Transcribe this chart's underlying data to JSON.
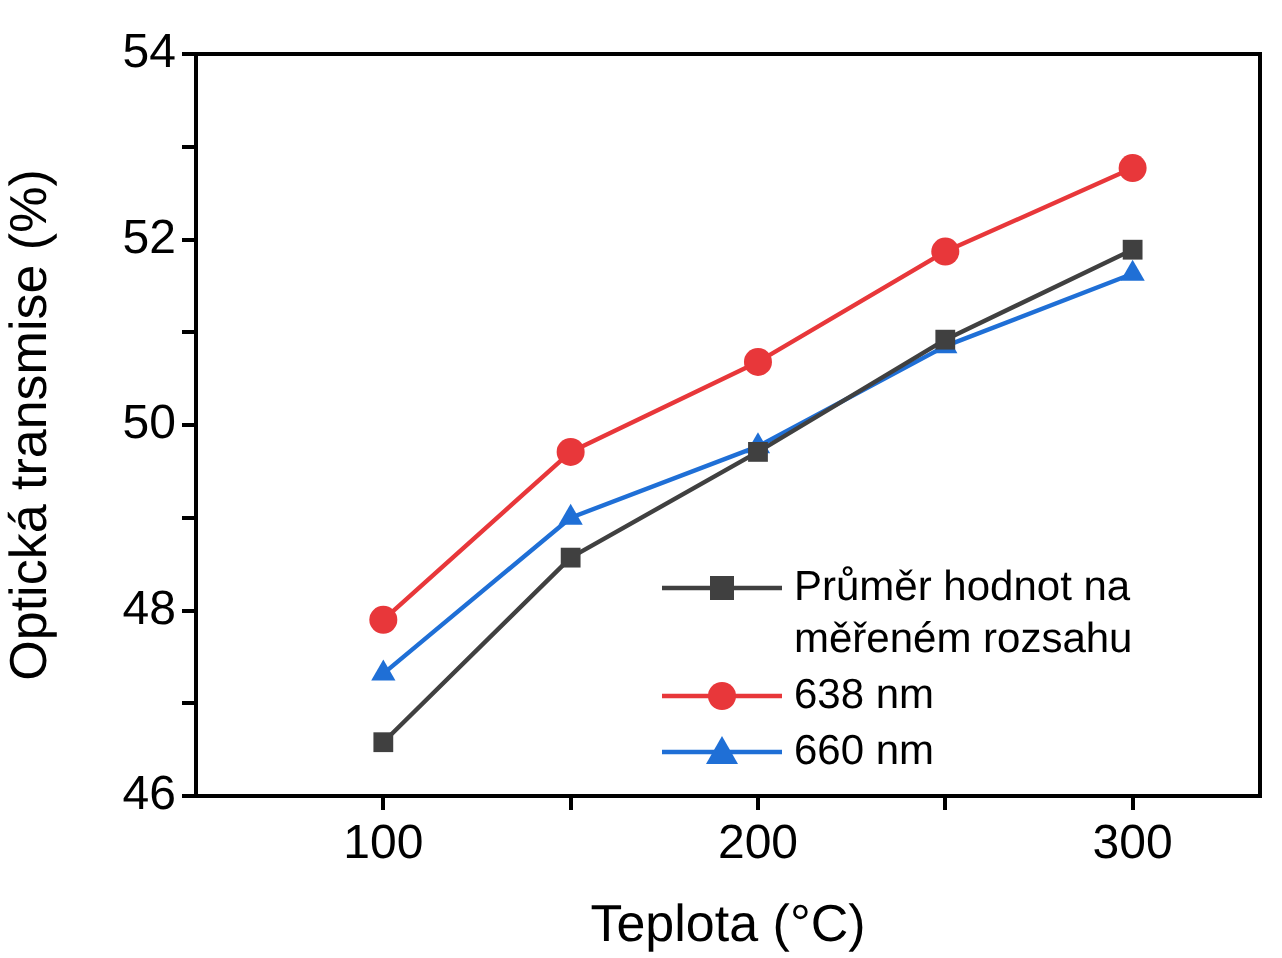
{
  "chart_data": {
    "type": "line",
    "xlabel": "Teplota (°C)",
    "ylabel": "Optická transmise (%)",
    "x": [
      100,
      150,
      200,
      250,
      300
    ],
    "xlim": [
      50,
      334
    ],
    "xticks": [
      100,
      {
        "value": 150,
        "label": null
      },
      200,
      {
        "value": 250,
        "label": null
      },
      300
    ],
    "ylim": [
      46,
      54
    ],
    "yticks": [
      46,
      {
        "value": 47,
        "label": null
      },
      48,
      {
        "value": 49,
        "label": null
      },
      50,
      {
        "value": 51,
        "label": null
      },
      52,
      {
        "value": 53,
        "label": null
      },
      54
    ],
    "legend": "bottom right",
    "line_style": "solid",
    "series": [
      {
        "name": "Průměr hodnot na měřeném rozsahu",
        "color": "#404040",
        "marker": "square",
        "values": [
          46.58,
          48.57,
          49.71,
          50.92,
          51.89
        ]
      },
      {
        "name": "638 nm",
        "color": "#e8373a",
        "marker": "circle",
        "values": [
          47.9,
          49.71,
          50.68,
          51.87,
          52.77
        ]
      },
      {
        "name": "660 nm",
        "color": "#1f6fd6",
        "marker": "triangle",
        "values": [
          47.32,
          49.0,
          49.77,
          50.85,
          51.63
        ]
      }
    ]
  }
}
